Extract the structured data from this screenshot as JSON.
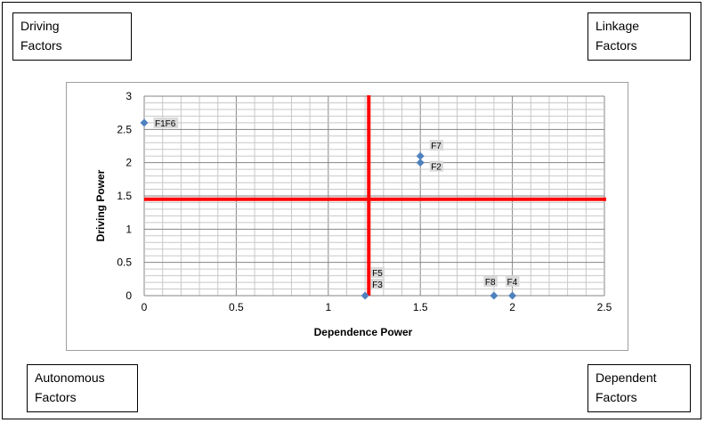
{
  "corners": {
    "top_left": "Driving\nFactors",
    "top_right": "Linkage\nFactors",
    "bottom_left": "Autonomous\nFactors",
    "bottom_right": "Dependent\nFactors"
  },
  "colors": {
    "point": "#4f81bd",
    "divider": "#ff0000",
    "grid_major": "#868686",
    "grid_minor": "#c8c8c8",
    "label_bg": "#d9d9d9"
  },
  "chart_data": {
    "type": "scatter",
    "title": "",
    "xlabel": "Dependence Power",
    "ylabel": "Driving Power",
    "xlim": [
      0,
      2.5
    ],
    "ylim": [
      0,
      3
    ],
    "xticks": [
      "0",
      "0.5",
      "1",
      "1.5",
      "2",
      "2.5"
    ],
    "yticks": [
      "0",
      "0.5",
      "1",
      "1.5",
      "2",
      "2.5",
      "3"
    ],
    "grid": true,
    "points": [
      {
        "x": 0,
        "y": 2.6,
        "label": "F1F6"
      },
      {
        "x": 1.5,
        "y": 2.1,
        "label": "F7"
      },
      {
        "x": 1.5,
        "y": 2.0,
        "label": "F2"
      },
      {
        "x": 1.2,
        "y": 0,
        "label": "F5"
      },
      {
        "x": 1.2,
        "y": 0,
        "label": "F3"
      },
      {
        "x": 1.9,
        "y": 0,
        "label": "F8"
      },
      {
        "x": 2.0,
        "y": 0,
        "label": "F4"
      }
    ],
    "dividers": {
      "x": 1.22,
      "y": 1.45
    }
  }
}
